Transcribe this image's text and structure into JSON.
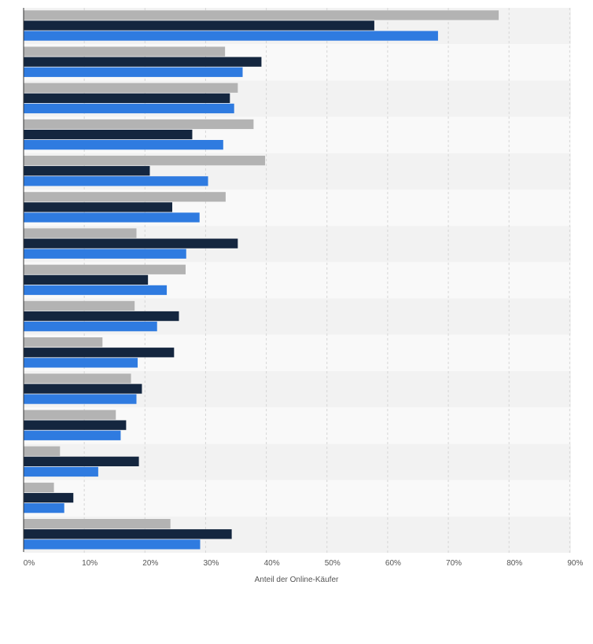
{
  "chart_data": {
    "type": "bar",
    "orientation": "horizontal",
    "title": "",
    "xlabel": "Anteil der Online-Käufer",
    "ylabel": "",
    "xlim": [
      0,
      90
    ],
    "xticks": [
      "0%",
      "10%",
      "20%",
      "30%",
      "40%",
      "50%",
      "60%",
      "70%",
      "80%",
      "90%"
    ],
    "grid": true,
    "legend": "none",
    "categories": [
      "",
      "",
      "",
      "",
      "",
      "",
      "",
      "",
      "",
      "",
      "",
      "",
      "",
      "",
      ""
    ],
    "series": [
      {
        "color": "#b3b3b3",
        "values": [
          78.3,
          33.2,
          35.3,
          37.9,
          39.8,
          33.3,
          18.6,
          26.7,
          18.3,
          13.0,
          17.7,
          15.2,
          6.0,
          5.0,
          24.2
        ]
      },
      {
        "color": "#14263f",
        "values": [
          57.8,
          39.2,
          34.0,
          27.8,
          20.8,
          24.5,
          35.3,
          20.5,
          25.6,
          24.8,
          19.5,
          16.9,
          19.0,
          8.2,
          34.3
        ]
      },
      {
        "color": "#2f7be0",
        "values": [
          68.3,
          36.1,
          34.7,
          32.9,
          30.4,
          29.0,
          26.8,
          23.6,
          22.0,
          18.8,
          18.6,
          16.0,
          12.3,
          6.7,
          29.1
        ]
      }
    ]
  }
}
